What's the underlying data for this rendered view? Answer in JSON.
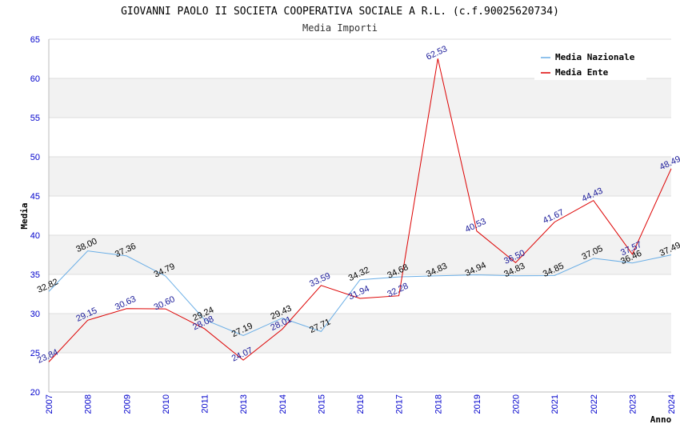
{
  "chart_data": {
    "type": "line",
    "title": "GIOVANNI PAOLO II SOCIETA COOPERATIVA SOCIALE A R.L. (c.f.90025620734)",
    "subtitle": "Media Importi",
    "xlabel": "Anno",
    "ylabel": "Media",
    "ylim": [
      20,
      65
    ],
    "yticks": [
      "20",
      "25",
      "30",
      "35",
      "40",
      "45",
      "50",
      "55",
      "60",
      "65"
    ],
    "categories": [
      "2007",
      "2008",
      "2009",
      "2010",
      "2011",
      "2013",
      "2014",
      "2015",
      "2016",
      "2017",
      "2018",
      "2019",
      "2020",
      "2021",
      "2022",
      "2023",
      "2024"
    ],
    "legend_position": "top-right",
    "series": [
      {
        "name": "Media Nazionale",
        "color": "#6aaee6",
        "values": [
          32.82,
          38.0,
          37.36,
          34.79,
          29.24,
          27.19,
          29.43,
          27.71,
          34.32,
          34.68,
          34.83,
          34.94,
          34.83,
          34.85,
          37.05,
          36.46,
          37.49
        ],
        "labels": [
          "32.82",
          "38.00",
          "37.36",
          "34.79",
          "29.24",
          "27.19",
          "29.43",
          "27.71",
          "34.32",
          "34.68",
          "34.83",
          "34.94",
          "34.83",
          "34.85",
          "37.05",
          "36.46",
          "37.49"
        ]
      },
      {
        "name": "Media Ente",
        "color": "#dd0000",
        "values": [
          23.84,
          29.15,
          30.63,
          30.6,
          28.08,
          24.07,
          28.01,
          33.59,
          31.94,
          32.28,
          62.53,
          40.53,
          36.5,
          41.67,
          44.43,
          37.57,
          48.49
        ],
        "labels": [
          "23.84",
          "29.15",
          "30.63",
          "30.60",
          "28.08",
          "24.07",
          "28.01",
          "33.59",
          "31.94",
          "32.28",
          "62.53",
          "40.53",
          "36.50",
          "41.67",
          "44.43",
          "37.57",
          "48.49"
        ]
      }
    ]
  }
}
